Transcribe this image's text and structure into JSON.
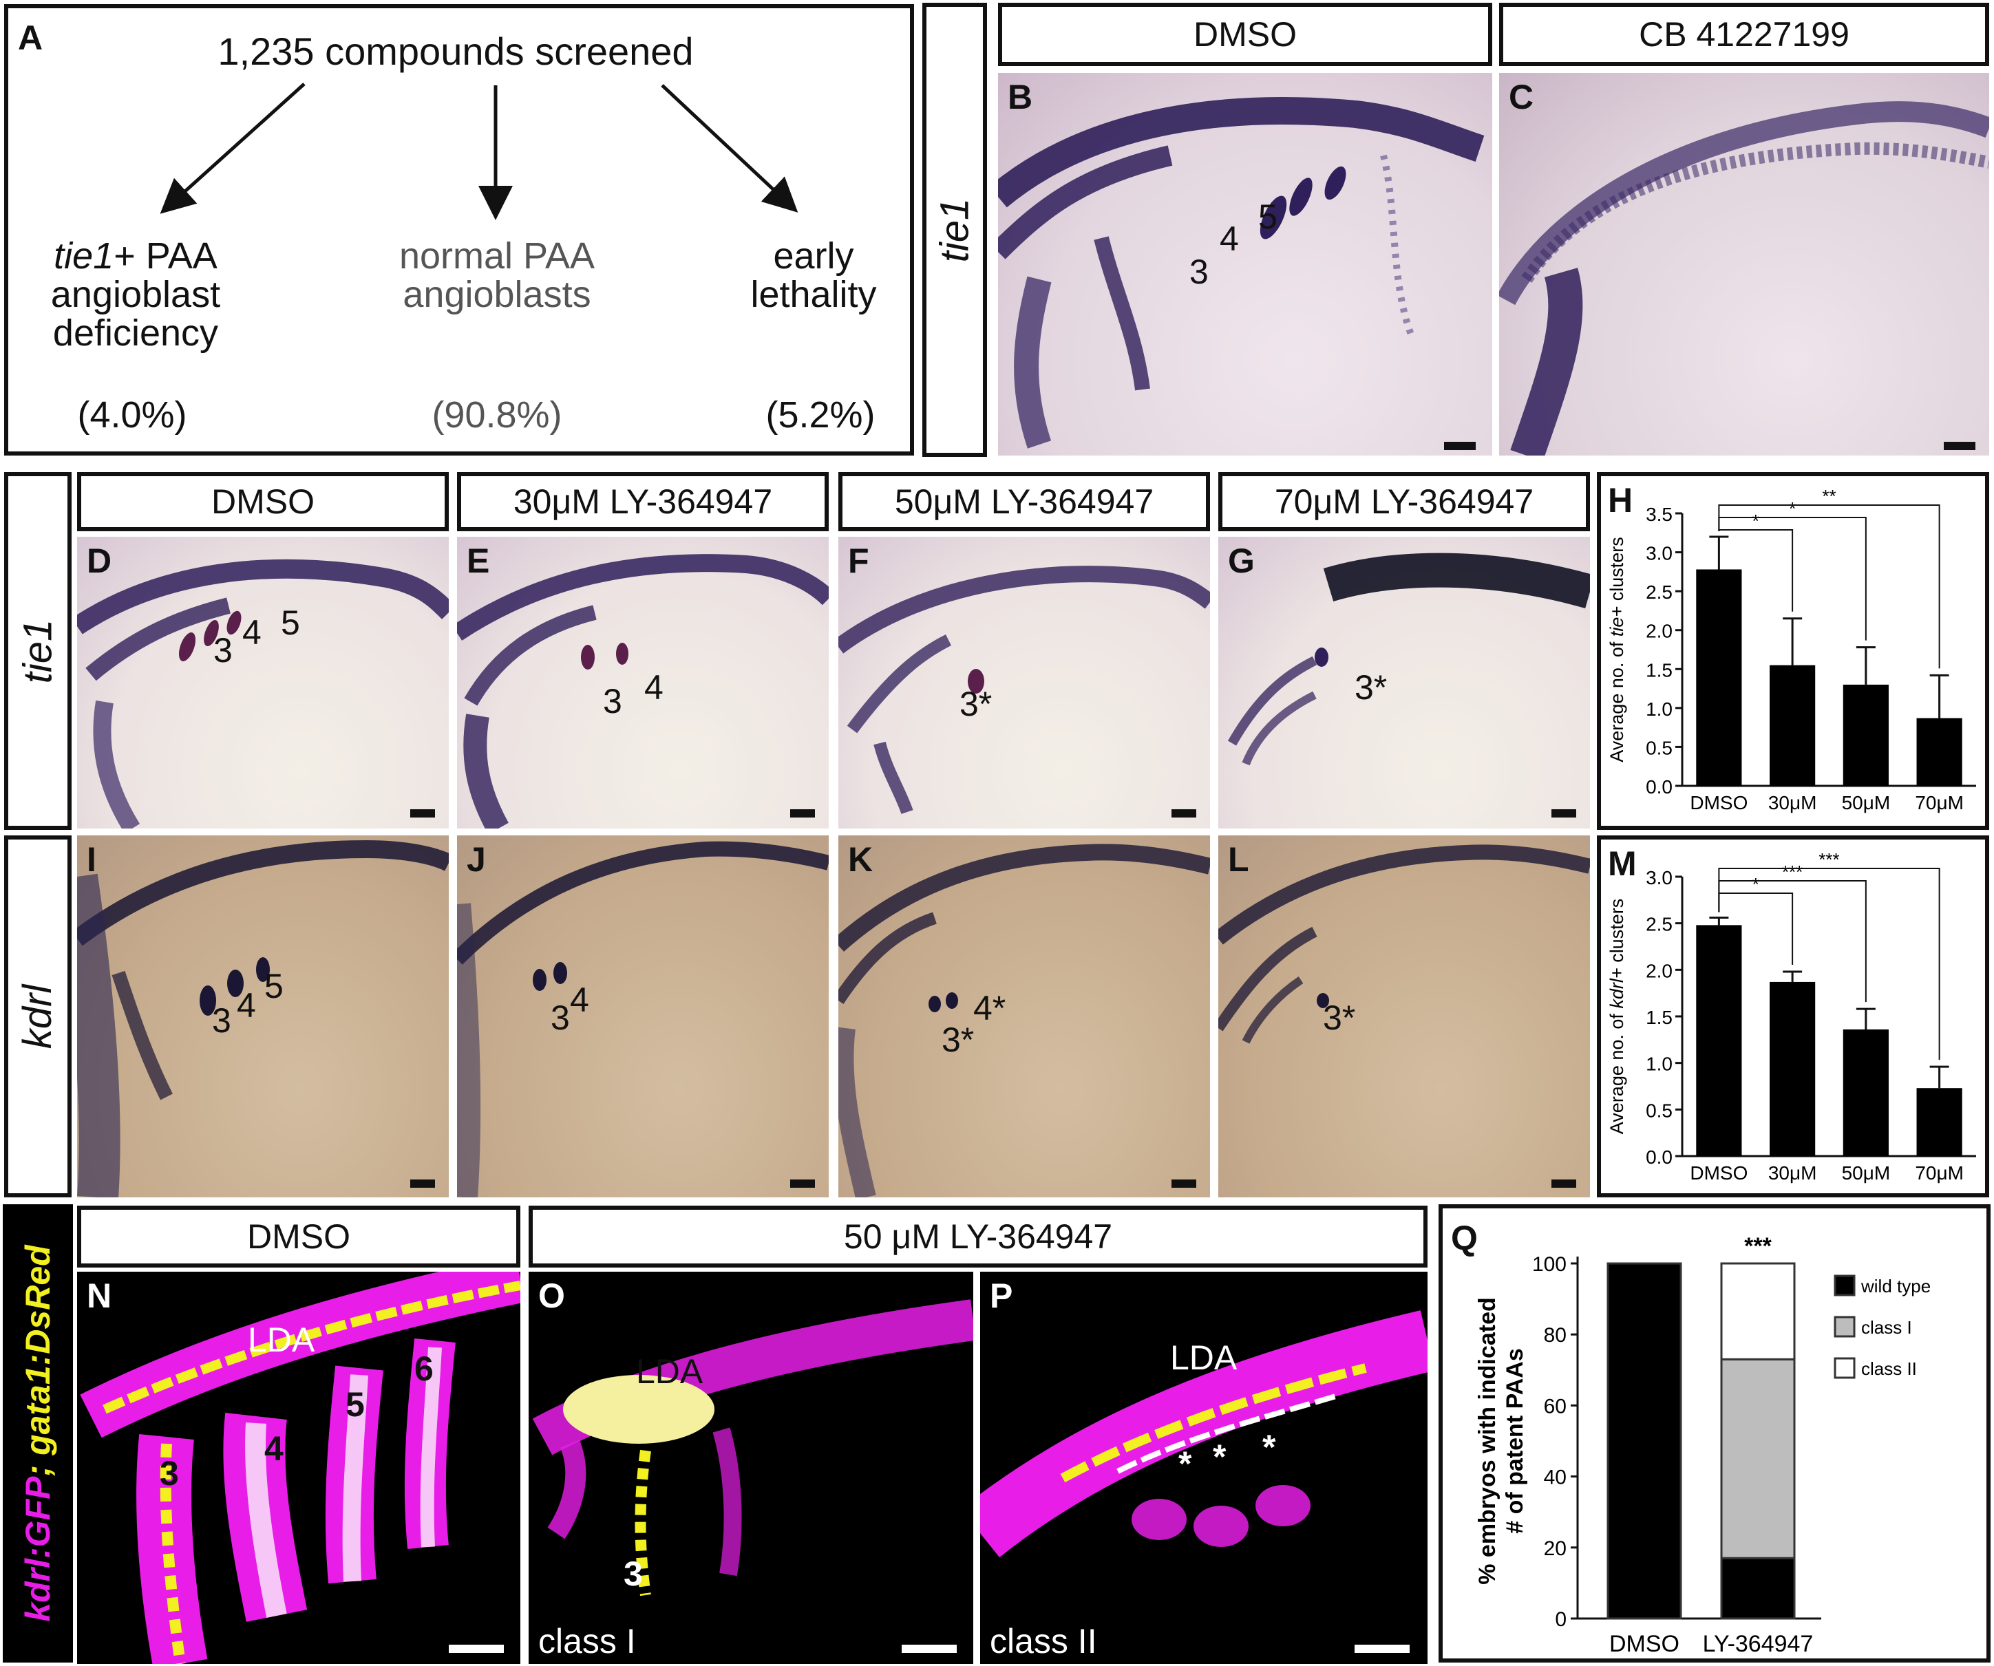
{
  "panelA": {
    "letter": "A",
    "title": "1,235 compounds screened",
    "outcomes": [
      {
        "line1_italic": "tie1",
        "line1_rest": "+ PAA",
        "line2": "angioblast",
        "line3": "deficiency",
        "pct": "(4.0%)"
      },
      {
        "line1": "normal PAA",
        "line2": "angioblasts",
        "pct": "(90.8%)"
      },
      {
        "line1": "early",
        "line2": "lethality",
        "pct": "(5.2%)"
      }
    ]
  },
  "row1": {
    "side_label": "tie1",
    "headers": [
      "DMSO",
      "CB 41227199"
    ],
    "panels": [
      {
        "letter": "B",
        "numbers": [
          "3",
          "4",
          "5"
        ]
      },
      {
        "letter": "C"
      }
    ]
  },
  "row2": {
    "side_label": "tie1",
    "headers": [
      "DMSO",
      "30μM LY-364947",
      "50μM LY-364947",
      "70μM LY-364947"
    ],
    "panels": [
      {
        "letter": "D",
        "numbers": [
          "3",
          "4",
          "5"
        ]
      },
      {
        "letter": "E",
        "numbers": [
          "3",
          "4"
        ]
      },
      {
        "letter": "F",
        "numbers": [
          "3*"
        ]
      },
      {
        "letter": "G",
        "numbers": [
          "3*"
        ]
      }
    ]
  },
  "row3": {
    "side_label": "kdrl",
    "panels": [
      {
        "letter": "I",
        "numbers": [
          "3",
          "4",
          "5"
        ]
      },
      {
        "letter": "J",
        "numbers": [
          "3",
          "4"
        ]
      },
      {
        "letter": "K",
        "numbers": [
          "4*",
          "3*"
        ]
      },
      {
        "letter": "L",
        "numbers": [
          "3*"
        ]
      }
    ]
  },
  "row4": {
    "side_label_magenta": "kdrl:GFP",
    "side_label_sep": "; ",
    "side_label_yellow": "gata1:DsRed",
    "headers": [
      "DMSO",
      "50 μM LY-364947"
    ],
    "panels": [
      {
        "letter": "N",
        "lda": "LDA",
        "numbers": [
          "3",
          "4",
          "5",
          "6"
        ]
      },
      {
        "letter": "O",
        "lda": "LDA",
        "numbers": [
          "3"
        ],
        "class_label": "class I"
      },
      {
        "letter": "P",
        "lda": "LDA",
        "stars": [
          "*",
          "*",
          "*"
        ],
        "class_label": "class II"
      }
    ]
  },
  "colors": {
    "ish_stain": "#2f1f5a",
    "tie1_bg": "#e9dde6",
    "kdrl_bg": "#c7ab8d",
    "fluor_magenta": "#e81ee8",
    "fluor_yellow": "#f2f020",
    "bar_fill": "#000000",
    "class1_fill": "#bdbdbd"
  },
  "chart_data": [
    {
      "panel": "H",
      "type": "bar",
      "categories": [
        "DMSO",
        "30μM",
        "50μM",
        "70μM"
      ],
      "values": [
        2.78,
        1.55,
        1.3,
        0.87
      ],
      "errors": [
        0.42,
        0.6,
        0.48,
        0.55
      ],
      "ylabel_prefix": "Average no. of ",
      "ylabel_italic": "tie+",
      "ylabel_suffix": " clusters",
      "ylim": [
        0,
        3.5
      ],
      "yticks": [
        "0.0",
        "0.5",
        "1.0",
        "1.5",
        "2.0",
        "2.5",
        "3.0",
        "3.5"
      ],
      "significance": [
        "*",
        "*",
        "**"
      ]
    },
    {
      "panel": "M",
      "type": "bar",
      "categories": [
        "DMSO",
        "30μM",
        "50μM",
        "70μM"
      ],
      "values": [
        2.48,
        1.87,
        1.36,
        0.73
      ],
      "errors": [
        0.08,
        0.11,
        0.22,
        0.23
      ],
      "ylabel_prefix": "Average no. of ",
      "ylabel_italic": "kdrl+",
      "ylabel_suffix": " clusters",
      "ylim": [
        0,
        3.0
      ],
      "yticks": [
        "0.0",
        "0.5",
        "1.0",
        "1.5",
        "2.0",
        "2.5",
        "3.0"
      ],
      "significance": [
        "*",
        "***",
        "***"
      ]
    },
    {
      "panel": "Q",
      "type": "bar",
      "stacked": true,
      "categories": [
        "DMSO",
        "LY-364947"
      ],
      "series": [
        {
          "name": "wild type",
          "values": [
            100,
            17
          ]
        },
        {
          "name": "class I",
          "values": [
            0,
            56
          ]
        },
        {
          "name": "class II",
          "values": [
            0,
            27
          ]
        }
      ],
      "ylabel_line1": "% embryos with indicated",
      "ylabel_line2": "# of patent PAAs",
      "ylim": [
        0,
        100
      ],
      "yticks": [
        "0",
        "20",
        "40",
        "60",
        "80",
        "100"
      ],
      "significance": "***"
    }
  ]
}
